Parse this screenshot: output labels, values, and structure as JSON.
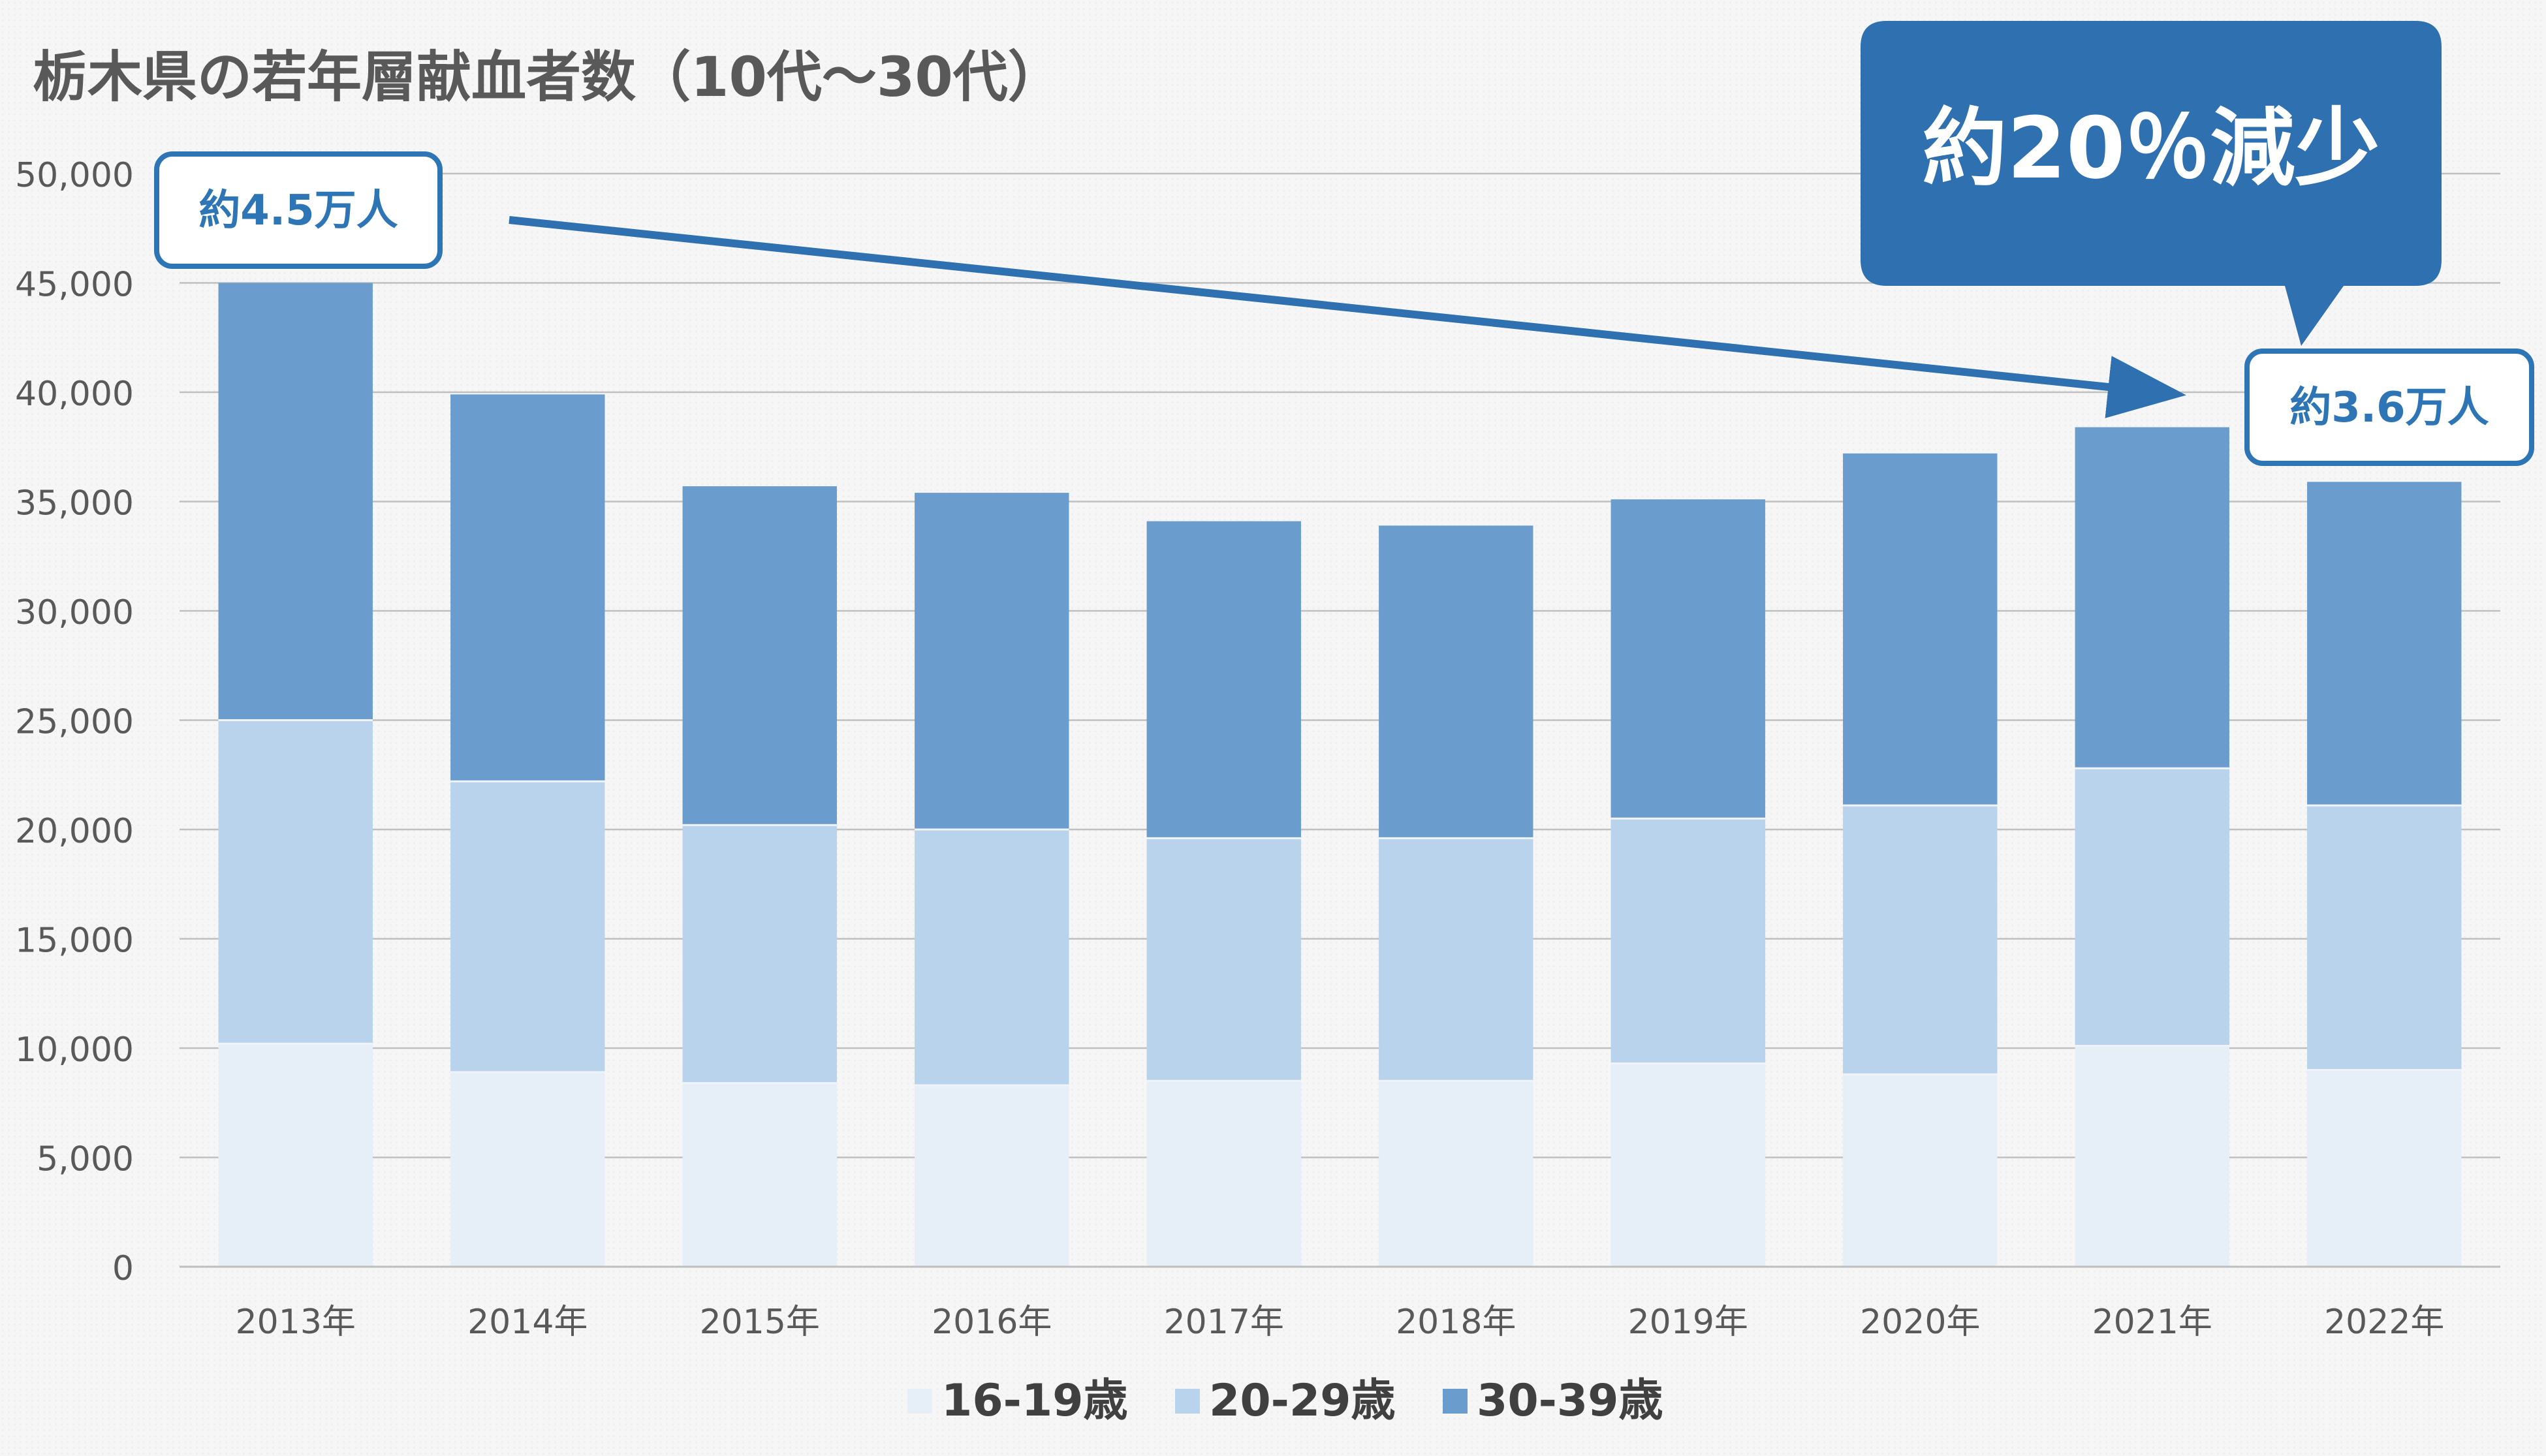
{
  "colors": {
    "s16_19": "#e6eef8",
    "s20_29": "#bad3ec",
    "s30_39": "#6a9dcd",
    "accent": "#2e75b6",
    "callout_fill": "#2e70b0",
    "grid": "#bfbfbf",
    "text": "#595959"
  },
  "chart_data": {
    "type": "bar",
    "stacked": true,
    "title": "栃木県の若年層献血者数（10代～30代）",
    "categories": [
      "2013年",
      "2014年",
      "2015年",
      "2016年",
      "2017年",
      "2018年",
      "2019年",
      "2020年",
      "2021年",
      "2022年"
    ],
    "series": [
      {
        "name": "16-19歳",
        "values": [
          10200,
          8900,
          8400,
          8300,
          8500,
          8500,
          9300,
          8800,
          10100,
          9000
        ]
      },
      {
        "name": "20-29歳",
        "values": [
          14800,
          13300,
          11800,
          11700,
          11100,
          11100,
          11200,
          12300,
          12700,
          12100
        ]
      },
      {
        "name": "30-39歳",
        "values": [
          20000,
          17700,
          15500,
          15400,
          14500,
          14300,
          14600,
          16100,
          15600,
          14800
        ]
      }
    ],
    "y_ticks": [
      "0",
      "5,000",
      "10,000",
      "15,000",
      "20,000",
      "25,000",
      "30,000",
      "35,000",
      "40,000",
      "45,000",
      "50,000"
    ],
    "ylim": [
      0,
      50000
    ],
    "grid": true,
    "legend_position": "bottom-center",
    "annotations": {
      "start_label": "約4.5万人",
      "end_label": "約3.6万人",
      "callout": "約20％減少"
    }
  }
}
